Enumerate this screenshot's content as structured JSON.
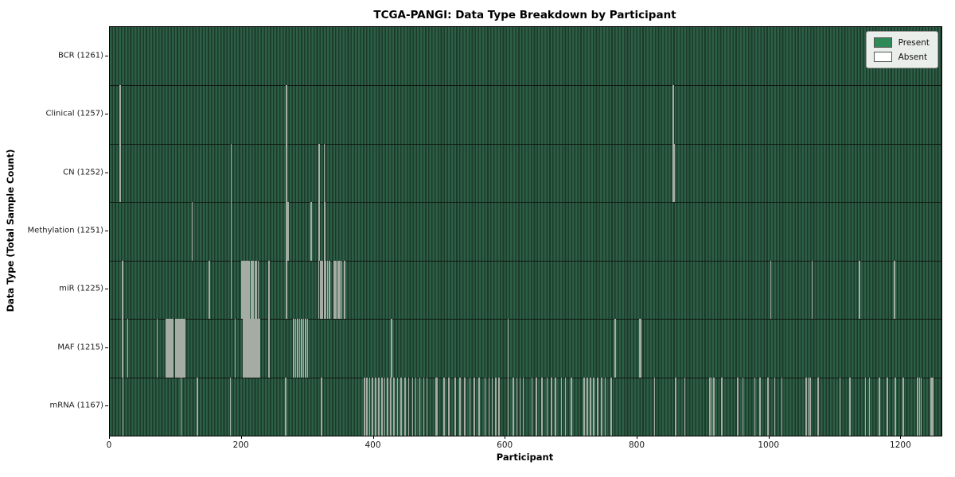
{
  "chart_data": {
    "type": "heatmap",
    "title": "TCGA-PANGI: Data Type Breakdown by Participant",
    "xlabel": "Participant",
    "ylabel": "Data Type (Total Sample Count)",
    "x_ticks": [
      0,
      200,
      400,
      600,
      800,
      1000,
      1200
    ],
    "x_range": [
      0,
      1261
    ],
    "n_participants": 1261,
    "legend_position": "upper right",
    "legend_items": [
      {
        "label": "Present",
        "color": "#2e8b57"
      },
      {
        "label": "Absent",
        "color": "#ffffff"
      }
    ],
    "colors": {
      "present": "#2e8b57",
      "absent": "#ffffff",
      "bar_edge": "#1c3b2b",
      "absent_rendered": "#a4aca4"
    },
    "rows": [
      {
        "data_type": "BCR",
        "label": "BCR (1261)",
        "present_count": 1261,
        "absent_count": 0,
        "absent_indices": []
      },
      {
        "data_type": "Clinical",
        "label": "Clinical (1257)",
        "present_count": 1257,
        "absent_count": 4,
        "absent_indices": [
          16,
          268,
          854,
          855
        ]
      },
      {
        "data_type": "CN",
        "label": "CN (1252)",
        "present_count": 1252,
        "absent_count": 9,
        "absent_indices": [
          16,
          184,
          268,
          317,
          318,
          325,
          854,
          855,
          856
        ]
      },
      {
        "data_type": "Methylation",
        "label": "Methylation (1251)",
        "present_count": 1251,
        "absent_count": 10,
        "absent_indices": [
          125,
          184,
          268,
          269,
          270,
          305,
          317,
          318,
          325,
          326
        ]
      },
      {
        "data_type": "miR",
        "label": "miR (1225)",
        "present_count": 1225,
        "absent_count": 36,
        "absent_indices": [
          19,
          151,
          184,
          200,
          202,
          204,
          206,
          208,
          210,
          212,
          214,
          216,
          218,
          220,
          222,
          225,
          241,
          268,
          317,
          319,
          321,
          323,
          325,
          327,
          330,
          333,
          340,
          343,
          346,
          349,
          352,
          356,
          1002,
          1065,
          1137,
          1190
        ]
      },
      {
        "data_type": "MAF",
        "label": "MAF (1215)",
        "present_count": 1215,
        "absent_count": 46,
        "absent_indices": [
          19,
          27,
          72,
          85,
          87,
          89,
          91,
          93,
          95,
          100,
          102,
          104,
          106,
          108,
          110,
          112,
          114,
          190,
          203,
          205,
          207,
          209,
          211,
          213,
          215,
          217,
          219,
          221,
          223,
          225,
          227,
          241,
          279,
          282,
          285,
          288,
          291,
          294,
          297,
          300,
          427,
          604,
          766,
          803,
          804,
          805
        ]
      },
      {
        "data_type": "mRNA",
        "label": "mRNA (1167)",
        "present_count": 1167,
        "absent_count": 94,
        "absent_indices": [
          20,
          108,
          133,
          183,
          267,
          321,
          386,
          390,
          394,
          398,
          403,
          408,
          413,
          417,
          421,
          426,
          431,
          436,
          442,
          448,
          453,
          459,
          464,
          470,
          476,
          481,
          494,
          496,
          507,
          514,
          524,
          531,
          538,
          546,
          553,
          560,
          569,
          575,
          580,
          585,
          590,
          604,
          612,
          617,
          622,
          627,
          640,
          647,
          655,
          663,
          670,
          676,
          685,
          691,
          700,
          719,
          724,
          729,
          734,
          740,
          746,
          751,
          760,
          826,
          858,
          872,
          910,
          913,
          916,
          928,
          952,
          960,
          978,
          986,
          998,
          1008,
          1019,
          1056,
          1059,
          1062,
          1074,
          1107,
          1122,
          1146,
          1152,
          1167,
          1179,
          1191,
          1203,
          1225,
          1228,
          1230,
          1245,
          1248
        ]
      }
    ]
  }
}
